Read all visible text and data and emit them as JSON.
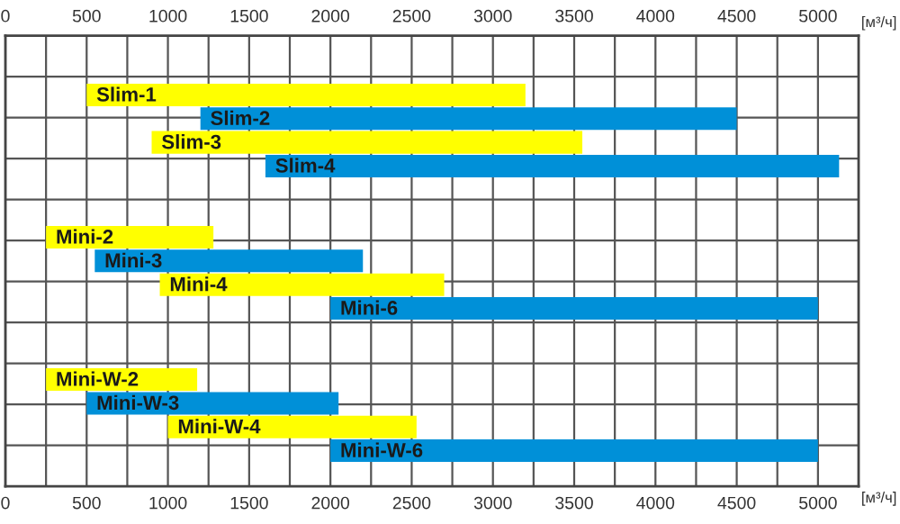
{
  "chart_data": {
    "type": "bar",
    "orientation": "horizontal",
    "xlabel": "[м³/ч]",
    "x2label": "[м³/ч]",
    "categories": [
      null,
      null,
      "Slim-1",
      "Slim-2",
      "Slim-3",
      "Slim-4",
      null,
      null,
      "Mini-2",
      "Mini-3",
      "Mini-4",
      "Mini-6",
      null,
      null,
      "Mini-W-2",
      "Mini-W-3",
      "Mini-W-4",
      "Mini-W-6",
      null
    ],
    "base": [
      null,
      null,
      500,
      1200,
      900,
      1600,
      null,
      null,
      250,
      550,
      950,
      2000,
      null,
      null,
      250,
      500,
      1000,
      2000,
      null
    ],
    "values": [
      null,
      null,
      2700,
      3300,
      2650,
      3530,
      null,
      null,
      1030,
      1650,
      1750,
      3000,
      null,
      null,
      930,
      1550,
      1530,
      3000,
      null
    ],
    "colors": [
      "#ffff00",
      "#ffff00",
      "#ffff00",
      "#0090d8",
      "#ffff00",
      "#0090d8",
      "#ffff00",
      "#ffff00",
      "#ffff00",
      "#0090d8",
      "#ffff00",
      "#0090d8",
      "#ffff00",
      "#ffff00",
      "#ffff00",
      "#0090d8",
      "#ffff00",
      "#0090d8",
      "#ffff00"
    ],
    "xlim": [
      0,
      5250
    ],
    "x2lim": [
      0,
      5250
    ],
    "xticks": [
      0,
      {
        "value": 250,
        "label": null
      },
      500,
      {
        "value": 750,
        "label": null
      },
      1000,
      {
        "value": 1250,
        "label": null
      },
      1500,
      {
        "value": 1750,
        "label": null
      },
      2000,
      {
        "value": 2250,
        "label": null
      },
      2500,
      {
        "value": 2750,
        "label": null
      },
      3000,
      {
        "value": 3250,
        "label": null
      },
      3500,
      {
        "value": 3750,
        "label": null
      },
      4000,
      {
        "value": 4250,
        "label": null
      },
      4500,
      {
        "value": 4750,
        "label": null
      },
      5000
    ],
    "x2ticks": [
      0,
      500,
      1000,
      1500,
      2000,
      2500,
      3000,
      3500,
      4000,
      4500,
      5000
    ],
    "grid": true,
    "tick_labels": "x"
  }
}
